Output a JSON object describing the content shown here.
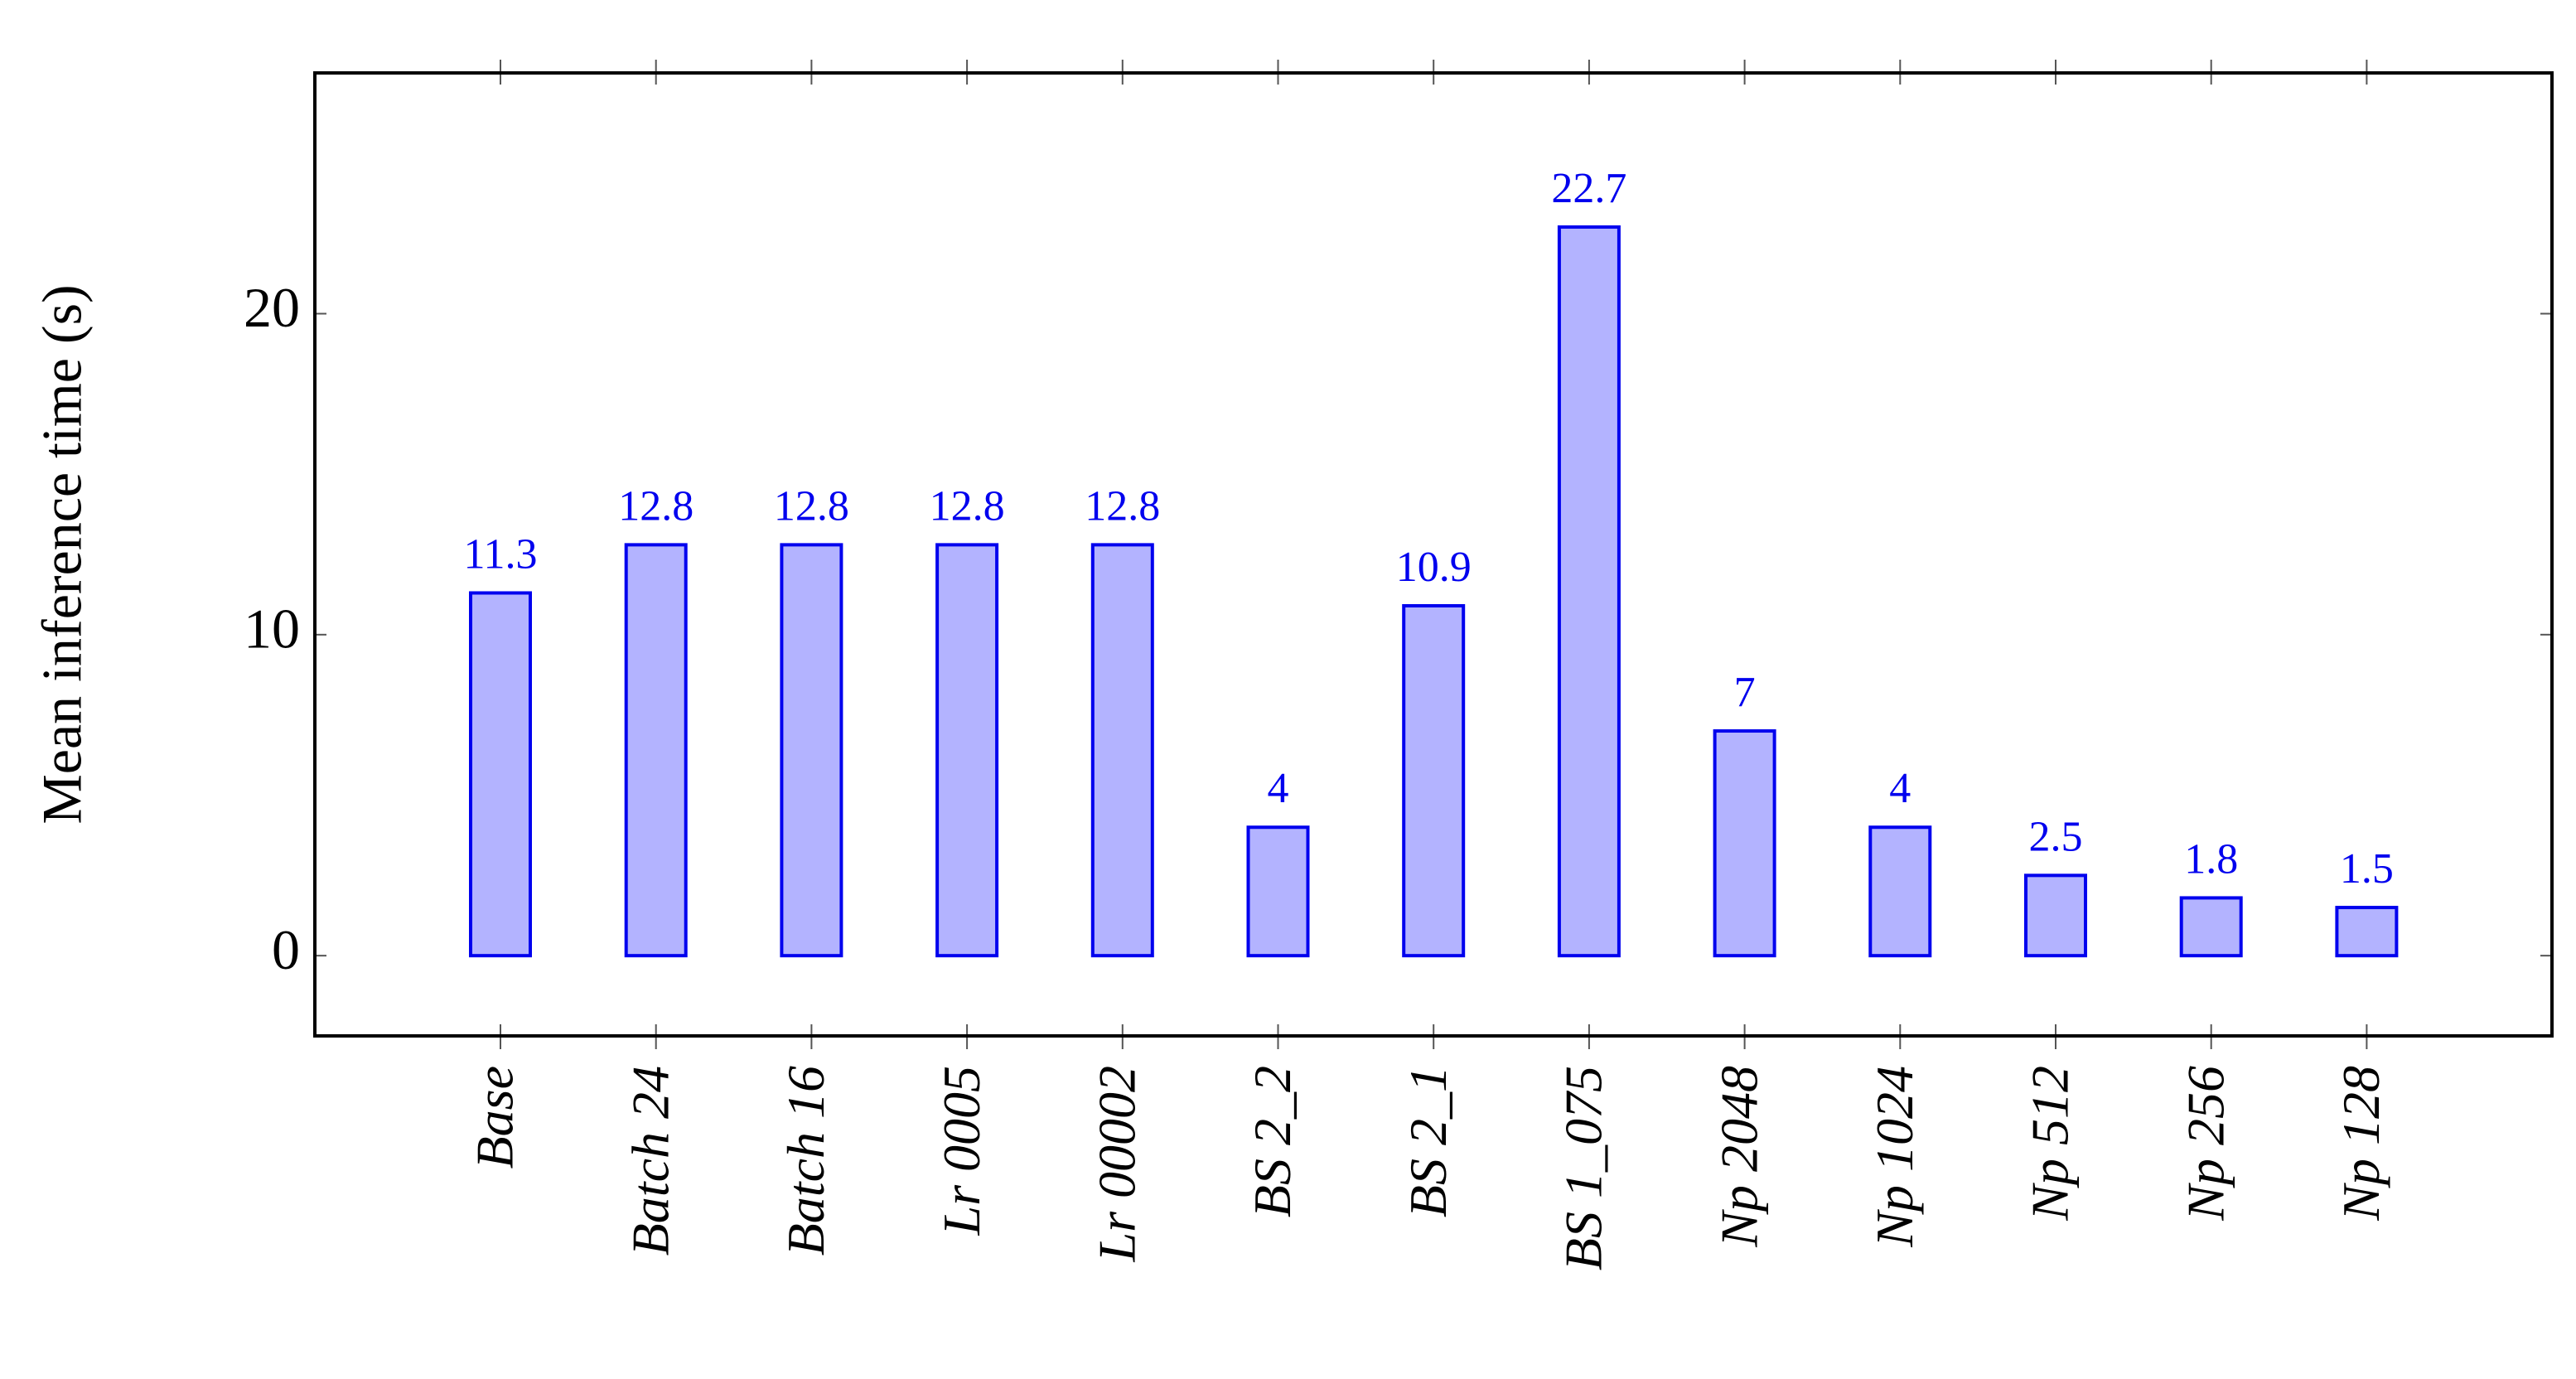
{
  "chart_data": {
    "type": "bar",
    "y_label": "Mean inference time (s)",
    "categories": [
      "Base",
      "Batch 24",
      "Batch 16",
      "Lr 0005",
      "Lr 00002",
      "BS 2_2",
      "BS 2_1",
      "BS 1_075",
      "Np 2048",
      "Np 1024",
      "Np 512",
      "Np 256",
      "Np 128"
    ],
    "values": [
      11.3,
      12.8,
      12.8,
      12.8,
      12.8,
      4,
      10.9,
      22.7,
      7,
      4,
      2.5,
      1.8,
      1.5
    ],
    "color": "#b3b3ff",
    "edge_color": "#0000ee",
    "label_color": "#0000ee",
    "ylim": [
      -2.5,
      27.5
    ],
    "yticks": [
      0,
      10,
      20
    ]
  }
}
